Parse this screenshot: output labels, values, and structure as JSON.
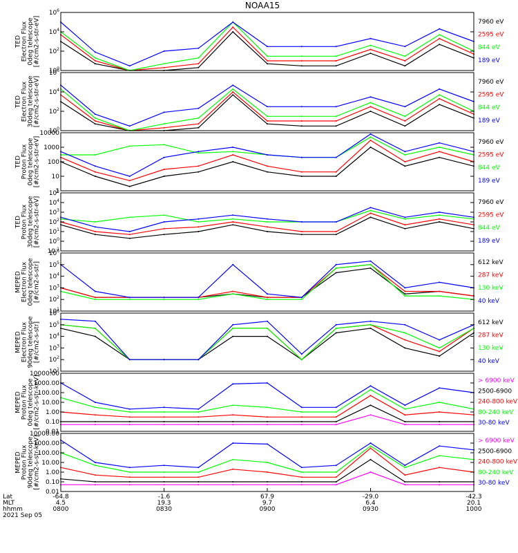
{
  "title": "NOAA15",
  "colors": {
    "blue": "#0000ff",
    "red": "#ff0000",
    "green": "#00ff00",
    "black": "#000000",
    "magenta": "#ff00ff"
  },
  "panels": [
    {
      "id": "ted-e-0deg",
      "ylabel": [
        "TED",
        "Electron Flux",
        "0deg telescope",
        "[#/cm2-s-str-eV]"
      ],
      "yscale": "log",
      "ylim": [
        1,
        1000000
      ],
      "ytick_values": [
        1,
        100,
        10000,
        1000000
      ],
      "ytick_labels": [
        "10^0",
        "10^2",
        "10^4",
        "10^6"
      ],
      "legend": [
        {
          "text": "7960 eV",
          "color": "black"
        },
        {
          "text": "2595 eV",
          "color": "red"
        },
        {
          "text": "844 eV",
          "color": "green"
        },
        {
          "text": "189 eV",
          "color": "blue"
        }
      ]
    },
    {
      "id": "ted-e-30deg",
      "ylabel": [
        "TED",
        "Electron Flux",
        "30deg telescope",
        "[#/cm2-s-str-eV]"
      ],
      "yscale": "log",
      "ylim": [
        1,
        1000000
      ],
      "ytick_values": [
        1,
        100,
        10000,
        1000000
      ],
      "ytick_labels": [
        "10^0",
        "10^2",
        "10^4",
        "10^6"
      ],
      "legend": [
        {
          "text": "7960 eV",
          "color": "black"
        },
        {
          "text": "2595 eV",
          "color": "red"
        },
        {
          "text": "844 eV",
          "color": "green"
        },
        {
          "text": "189 eV",
          "color": "blue"
        }
      ]
    },
    {
      "id": "ted-p-0deg",
      "ylabel": [
        "TED",
        "Proton Flux",
        "0deg telescope",
        "[#/cm2-s-str-eV]"
      ],
      "yscale": "log",
      "ylim": [
        1,
        10000
      ],
      "ytick_values": [
        1,
        10,
        100,
        1000,
        10000
      ],
      "ytick_labels": [
        "1",
        "10",
        "100",
        "1000",
        "10000"
      ],
      "legend": [
        {
          "text": "7960 eV",
          "color": "black"
        },
        {
          "text": "2595 eV",
          "color": "red"
        },
        {
          "text": "844 eV",
          "color": "green"
        },
        {
          "text": "189 eV",
          "color": "blue"
        }
      ]
    },
    {
      "id": "ted-p-30deg",
      "ylabel": [
        "TED",
        "Proton Flux",
        "30deg telescope",
        "[#/cm2-s-str-eV]"
      ],
      "yscale": "log",
      "ylim": [
        0.1,
        100000
      ],
      "ytick_values": [
        0.1,
        1,
        10,
        100,
        1000,
        10000,
        100000
      ],
      "ytick_labels": [
        "10^-1",
        "10^0",
        "10^1",
        "10^2",
        "10^3",
        "10^4",
        "10^5"
      ],
      "legend": [
        {
          "text": "7960 eV",
          "color": "black"
        },
        {
          "text": "2595 eV",
          "color": "red"
        },
        {
          "text": "844 eV",
          "color": "green"
        },
        {
          "text": "189 eV",
          "color": "blue"
        }
      ]
    },
    {
      "id": "meped-e-0deg",
      "ylabel": [
        "MEPED",
        "Electron Flux",
        "0deg telescope",
        "[#/cm2-s-str]"
      ],
      "yscale": "log",
      "ylim": [
        10,
        1000000
      ],
      "ytick_values": [
        10,
        100,
        1000,
        10000,
        100000,
        1000000
      ],
      "ytick_labels": [
        "10^1",
        "10^2",
        "10^3",
        "10^4",
        "10^5",
        "10^6"
      ],
      "legend": [
        {
          "text": "612 keV",
          "color": "black"
        },
        {
          "text": "287 keV",
          "color": "red"
        },
        {
          "text": "130 keV",
          "color": "green"
        },
        {
          "text": "40 keV",
          "color": "blue"
        }
      ]
    },
    {
      "id": "meped-e-90deg",
      "ylabel": [
        "MEPED",
        "Electron Flux",
        "90deg telescope",
        "[#/cm2-s-str]"
      ],
      "yscale": "log",
      "ylim": [
        10,
        1000000
      ],
      "ytick_values": [
        10,
        100,
        1000,
        10000,
        100000,
        1000000
      ],
      "ytick_labels": [
        "10^1",
        "10^2",
        "10^3",
        "10^4",
        "10^5",
        "10^6"
      ],
      "legend": [
        {
          "text": "612 keV",
          "color": "black"
        },
        {
          "text": "287 keV",
          "color": "red"
        },
        {
          "text": "130 keV",
          "color": "green"
        },
        {
          "text": "40 keV",
          "color": "blue"
        }
      ]
    },
    {
      "id": "meped-p-0deg",
      "ylabel": [
        "MEPED",
        "Proton Flux",
        "0deg telescope",
        "[#/cm2-s-str-keV]"
      ],
      "yscale": "log",
      "ylim": [
        0.01,
        10000
      ],
      "ytick_values": [
        0.01,
        0.1,
        1,
        10,
        100,
        1000,
        10000
      ],
      "ytick_labels": [
        "0.01",
        "0.10",
        "1.00",
        "10.00",
        "100.00",
        "1000.00",
        "10000.00"
      ],
      "legend": [
        {
          "text": "> 6900 keV",
          "color": "magenta"
        },
        {
          "text": "2500-6900",
          "color": "black"
        },
        {
          "text": "240-800 keV",
          "color": "red"
        },
        {
          "text": "80-240 keV",
          "color": "green"
        },
        {
          "text": "30-80 keV",
          "color": "blue"
        }
      ]
    },
    {
      "id": "meped-p-90deg",
      "ylabel": [
        "MEPED",
        "Proton Flux",
        "90deg telescope",
        "[#/cm2-s-str-keV]"
      ],
      "yscale": "log",
      "ylim": [
        0.01,
        10000
      ],
      "ytick_values": [
        0.01,
        0.1,
        1,
        10,
        100,
        1000,
        10000
      ],
      "ytick_labels": [
        "0.01",
        "0.10",
        "1.00",
        "10.00",
        "100.00",
        "1000.00",
        "10000.00"
      ],
      "legend": [
        {
          "text": "> 6900 keV",
          "color": "magenta"
        },
        {
          "text": "2500-6900",
          "color": "black"
        },
        {
          "text": "240-800 keV",
          "color": "red"
        },
        {
          "text": "80-240 keV",
          "color": "green"
        },
        {
          "text": "30-80 keV",
          "color": "blue"
        }
      ]
    }
  ],
  "xaxis": {
    "row_labels": [
      "Lat",
      "MLT",
      "hhmm",
      "2021 Sep 05"
    ],
    "ticks": [
      {
        "lat": "-64.8",
        "mlt": "4.5",
        "hhmm": "0800"
      },
      {
        "lat": "-1.6",
        "mlt": "19.3",
        "hhmm": "0830"
      },
      {
        "lat": "67.9",
        "mlt": "9.7",
        "hhmm": "0900"
      },
      {
        "lat": "-29.0",
        "mlt": "6.4",
        "hhmm": "0930"
      },
      {
        "lat": "-42.3",
        "mlt": "20.1",
        "hhmm": "1000"
      }
    ]
  },
  "chart_data": {
    "type": "line",
    "title": "NOAA15",
    "xlabel": "hhmm",
    "x": [
      "0800",
      "0810",
      "0820",
      "0830",
      "0840",
      "0850",
      "0900",
      "0910",
      "0920",
      "0930",
      "0940",
      "0950",
      "1000"
    ],
    "panels": [
      {
        "name": "TED Electron Flux 0deg telescope",
        "series": [
          {
            "name": "189 eV",
            "values": [
              100000,
              80,
              3,
              100,
              200,
              100000,
              300,
              300,
              300,
              2000,
              300,
              20000,
              1000
            ]
          },
          {
            "name": "844 eV",
            "values": [
              10000,
              20,
              1,
              5,
              20,
              100000,
              30,
              30,
              30,
              400,
              30,
              5000,
              100
            ]
          },
          {
            "name": "2595 eV",
            "values": [
              5000,
              10,
              1,
              2,
              5,
              30000,
              10,
              10,
              10,
              150,
              10,
              2000,
              50
            ]
          },
          {
            "name": "7960 eV",
            "values": [
              1000,
              5,
              1,
              1,
              2,
              10000,
              5,
              3,
              3,
              60,
              3,
              500,
              20
            ]
          }
        ]
      },
      {
        "name": "TED Electron Flux 30deg telescope",
        "series": [
          {
            "name": "189 eV",
            "values": [
              50000,
              50,
              3,
              80,
              200,
              50000,
              300,
              300,
              300,
              3000,
              300,
              20000,
              1000
            ]
          },
          {
            "name": "844 eV",
            "values": [
              20000,
              20,
              1,
              5,
              20,
              20000,
              30,
              30,
              30,
              800,
              30,
              5000,
              100
            ]
          },
          {
            "name": "2595 eV",
            "values": [
              5000,
              10,
              1,
              2,
              5,
              10000,
              10,
              10,
              10,
              300,
              10,
              2000,
              50
            ]
          },
          {
            "name": "7960 eV",
            "values": [
              1000,
              5,
              1,
              1,
              2,
              5000,
              5,
              3,
              3,
              100,
              3,
              500,
              20
            ]
          }
        ]
      },
      {
        "name": "TED Proton Flux 0deg telescope",
        "series": [
          {
            "name": "189 eV",
            "values": [
              500,
              50,
              10,
              200,
              500,
              1000,
              300,
              200,
              200,
              8000,
              500,
              2000,
              500
            ]
          },
          {
            "name": "844 eV",
            "values": [
              300,
              300,
              1200,
              1500,
              400,
              500,
              300,
              200,
              200,
              5000,
              300,
              1000,
              300
            ]
          },
          {
            "name": "2595 eV",
            "values": [
              200,
              20,
              5,
              30,
              50,
              300,
              50,
              20,
              20,
              3000,
              100,
              500,
              100
            ]
          },
          {
            "name": "7960 eV",
            "values": [
              100,
              10,
              2,
              10,
              20,
              100,
              20,
              10,
              10,
              1000,
              50,
              200,
              50
            ]
          }
        ]
      },
      {
        "name": "TED Proton Flux 30deg telescope",
        "series": [
          {
            "name": "189 eV",
            "values": [
              300,
              30,
              10,
              100,
              200,
              500,
              200,
              100,
              100,
              3000,
              300,
              1000,
              300
            ]
          },
          {
            "name": "844 eV",
            "values": [
              200,
              100,
              300,
              500,
              100,
              200,
              100,
              100,
              100,
              1500,
              200,
              500,
              200
            ]
          },
          {
            "name": "2595 eV",
            "values": [
              100,
              10,
              5,
              20,
              30,
              100,
              30,
              10,
              10,
              800,
              50,
              200,
              50
            ]
          },
          {
            "name": "7960 eV",
            "values": [
              50,
              5,
              2,
              5,
              10,
              50,
              10,
              5,
              5,
              300,
              20,
              100,
              20
            ]
          }
        ]
      },
      {
        "name": "MEPED Electron Flux 0deg telescope",
        "series": [
          {
            "name": "40 keV",
            "values": [
              100000,
              500,
              150,
              150,
              150,
              100000,
              300,
              150,
              100000,
              200000,
              1000,
              3000,
              1000
            ]
          },
          {
            "name": "130 keV",
            "values": [
              500,
              100,
              100,
              100,
              100,
              300,
              100,
              100,
              50000,
              100000,
              200,
              200,
              100
            ]
          },
          {
            "name": "287 keV",
            "values": [
              1000,
              150,
              150,
              150,
              150,
              500,
              150,
              150,
              50000,
              100000,
              500,
              500,
              200
            ]
          },
          {
            "name": "612 keV",
            "values": [
              1000,
              150,
              150,
              150,
              150,
              300,
              150,
              150,
              20000,
              50000,
              300,
              500,
              200
            ]
          }
        ]
      },
      {
        "name": "MEPED Electron Flux 90deg telescope",
        "series": [
          {
            "name": "40 keV",
            "values": [
              300000,
              200000,
              100,
              100,
              100,
              100000,
              200000,
              300,
              100000,
              200000,
              100000,
              5000,
              100000
            ]
          },
          {
            "name": "130 keV",
            "values": [
              100000,
              50000,
              100,
              100,
              100,
              50000,
              50000,
              100,
              50000,
              100000,
              20000,
              1000,
              50000
            ]
          },
          {
            "name": "287 keV",
            "values": [
              100000,
              50000,
              100,
              100,
              100,
              50000,
              50000,
              100,
              50000,
              100000,
              5000,
              500,
              50000
            ]
          },
          {
            "name": "612 keV",
            "values": [
              50000,
              10000,
              100,
              100,
              100,
              10000,
              10000,
              100,
              20000,
              50000,
              1000,
              200,
              20000
            ]
          }
        ]
      },
      {
        "name": "MEPED Proton Flux 0deg telescope",
        "series": [
          {
            "name": "30-80 keV",
            "values": [
              1000,
              10,
              2,
              3,
              2,
              800,
              1000,
              3,
              3,
              500,
              5,
              300,
              100
            ]
          },
          {
            "name": "80-240 keV",
            "values": [
              30,
              3,
              1,
              1,
              1,
              5,
              3,
              1,
              1,
              200,
              2,
              10,
              2
            ]
          },
          {
            "name": "240-800 keV",
            "values": [
              1,
              0.5,
              0.3,
              0.3,
              0.3,
              0.5,
              0.3,
              0.3,
              0.3,
              50,
              0.5,
              1,
              0.5
            ]
          },
          {
            "name": "2500-6900",
            "values": [
              0.1,
              0.1,
              0.1,
              0.1,
              0.1,
              0.1,
              0.1,
              0.1,
              0.1,
              5,
              0.1,
              0.1,
              0.1
            ]
          },
          {
            "name": "> 6900 keV",
            "values": [
              0.05,
              0.05,
              0.05,
              0.05,
              0.05,
              0.05,
              0.05,
              0.05,
              0.05,
              0.5,
              0.05,
              0.05,
              0.05
            ]
          }
        ]
      },
      {
        "name": "MEPED Proton Flux 90deg telescope",
        "series": [
          {
            "name": "30-80 keV",
            "values": [
              2000,
              10,
              3,
              5,
              3,
              1000,
              800,
              3,
              5,
              1000,
              5,
              500,
              200
            ]
          },
          {
            "name": "80-240 keV",
            "values": [
              100,
              5,
              1,
              1,
              1,
              20,
              10,
              1,
              1,
              500,
              3,
              50,
              20
            ]
          },
          {
            "name": "240-800 keV",
            "values": [
              3,
              0.5,
              0.3,
              0.3,
              0.3,
              2,
              1,
              0.3,
              0.3,
              300,
              0.5,
              3,
              1
            ]
          },
          {
            "name": "2500-6900",
            "values": [
              0.2,
              0.1,
              0.1,
              0.1,
              0.1,
              0.1,
              0.1,
              0.1,
              0.1,
              20,
              0.1,
              0.1,
              0.1
            ]
          },
          {
            "name": "> 6900 keV",
            "values": [
              0.05,
              0.05,
              0.05,
              0.05,
              0.05,
              0.05,
              0.05,
              0.05,
              0.05,
              1,
              0.05,
              0.05,
              0.05
            ]
          }
        ]
      }
    ]
  }
}
